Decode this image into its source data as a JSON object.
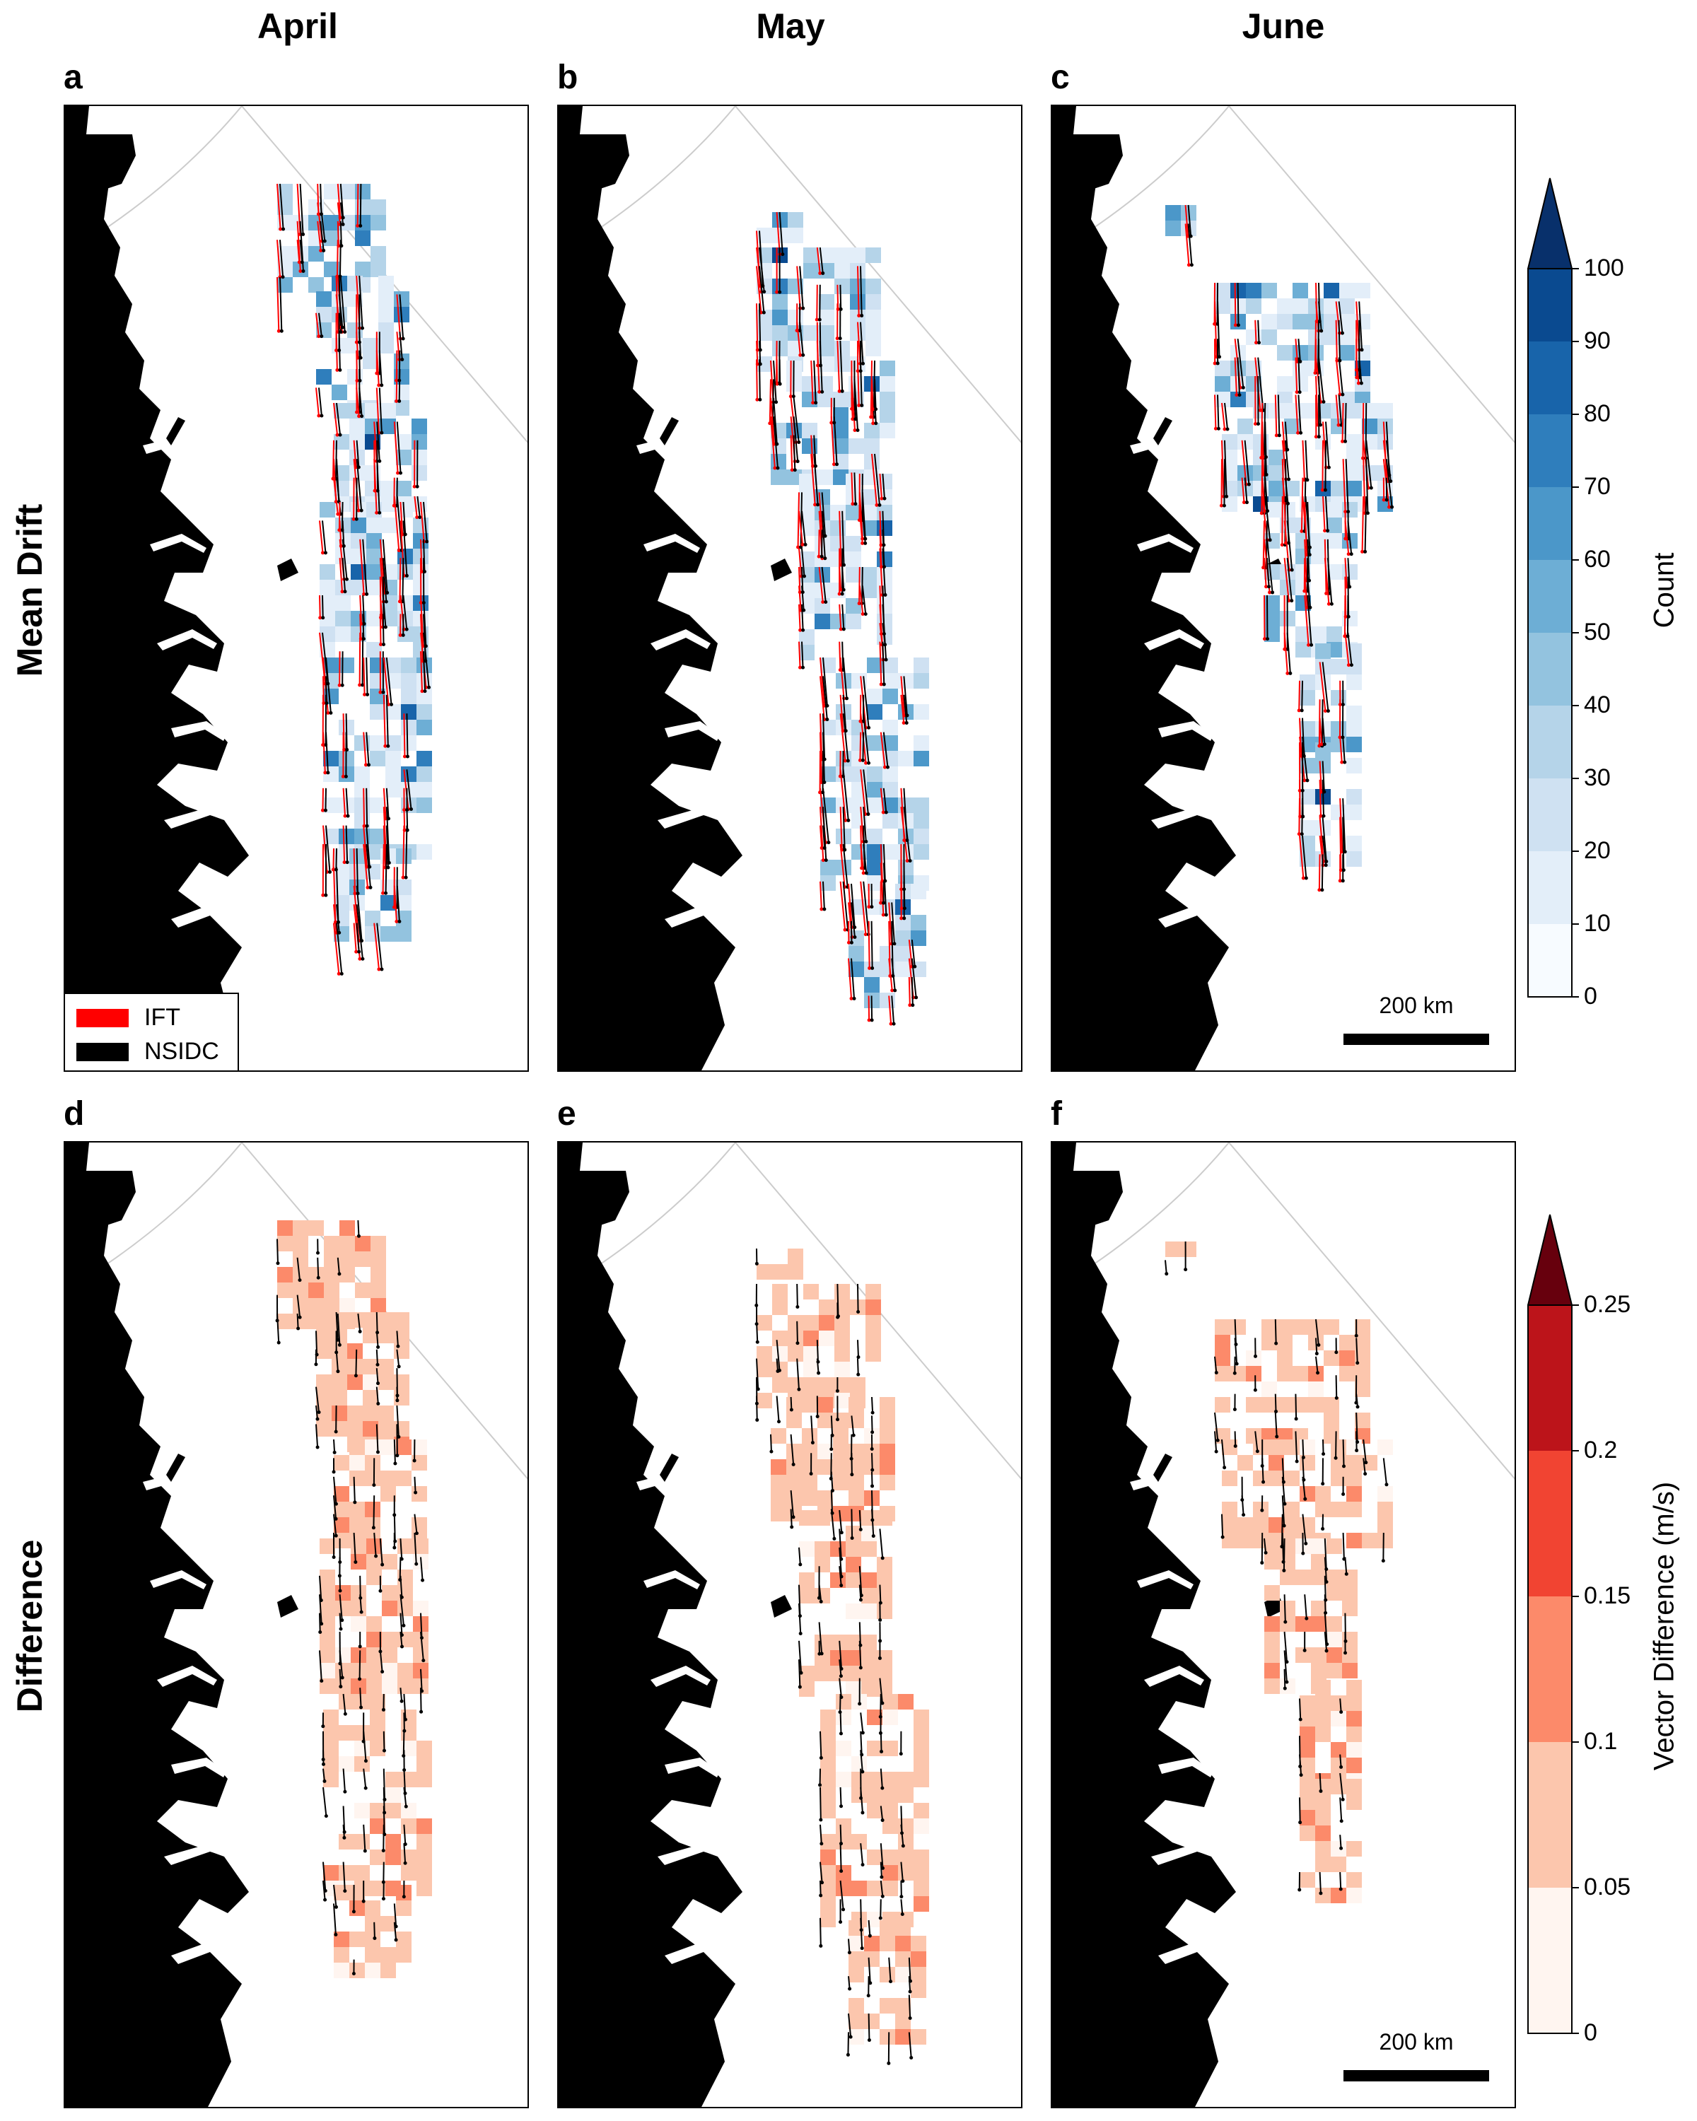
{
  "columns": [
    "April",
    "May",
    "June"
  ],
  "rows": [
    "Mean Drift",
    "Difference"
  ],
  "panels": [
    {
      "letter": "a",
      "row": 0,
      "col": 0,
      "seed": 11
    },
    {
      "letter": "b",
      "row": 0,
      "col": 1,
      "seed": 23
    },
    {
      "letter": "c",
      "row": 0,
      "col": 2,
      "seed": 37
    },
    {
      "letter": "d",
      "row": 1,
      "col": 0,
      "seed": 41
    },
    {
      "letter": "e",
      "row": 1,
      "col": 1,
      "seed": 53
    },
    {
      "letter": "f",
      "row": 1,
      "col": 2,
      "seed": 67
    }
  ],
  "legend": {
    "items": [
      {
        "label": "IFT",
        "color": "#ff0000"
      },
      {
        "label": "NSIDC",
        "color": "#000000"
      }
    ]
  },
  "scalebar": {
    "label": "200 km"
  },
  "colorbars": [
    {
      "label": "Count",
      "ticks": [
        "0",
        "10",
        "20",
        "30",
        "40",
        "50",
        "60",
        "70",
        "80",
        "90",
        "100"
      ],
      "colors": [
        "#f7fbff",
        "#e3eef9",
        "#cfe1f2",
        "#b5d4e9",
        "#93c3df",
        "#6daed5",
        "#4b97c9",
        "#2f7ebc",
        "#1864aa",
        "#0a4a90"
      ],
      "extend_color": "#08306b",
      "extend": "max"
    },
    {
      "label": "Vector Difference (m/s)",
      "ticks": [
        "0",
        "0.05",
        "0.1",
        "0.15",
        "0.2",
        "0.25"
      ],
      "colors": [
        "#fff5f0",
        "#fcc6ad",
        "#fc8a6a",
        "#f14432",
        "#bc141a"
      ],
      "extend_color": "#67000d",
      "extend": "max"
    }
  ],
  "colors": {
    "ift_arrow": "#ff0000",
    "nsidc_arrow": "#000000",
    "land": "#000000",
    "graticule": "#cccccc"
  }
}
